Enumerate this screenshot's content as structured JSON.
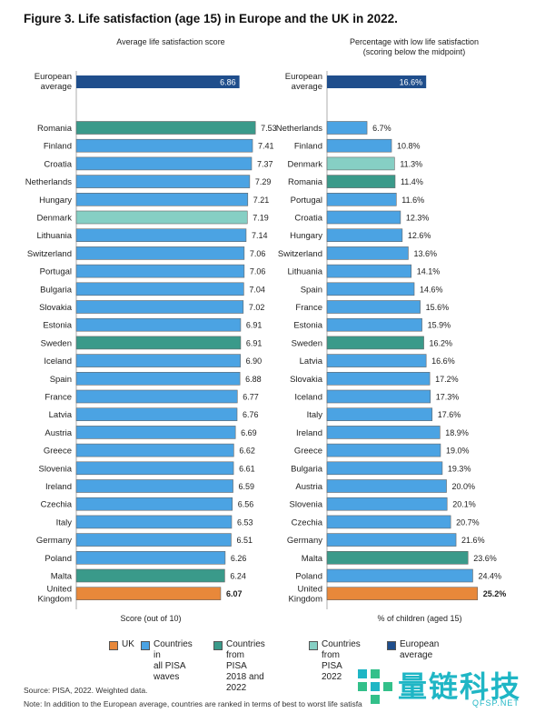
{
  "colors": {
    "uk": "#e8883a",
    "all_waves": "#4ba3e3",
    "from_2018_2022": "#3a9a8a",
    "from_2022": "#86cfc4",
    "european_average": "#1f4e8c"
  },
  "chart_data": [
    {
      "type": "bar",
      "orientation": "horizontal",
      "figure_title": "Figure 3. Life satisfaction (age 15) in Europe and the UK in 2022.",
      "title": "Average life satisfaction score",
      "xlabel": "Score (out of 10)",
      "xlim": [
        0,
        7.6
      ],
      "average": {
        "label": "European average",
        "value": 6.86,
        "display": "6.86"
      },
      "categories": [
        "Romania",
        "Finland",
        "Croatia",
        "Netherlands",
        "Hungary",
        "Denmark",
        "Lithuania",
        "Switzerland",
        "Portugal",
        "Bulgaria",
        "Slovakia",
        "Estonia",
        "Sweden",
        "Iceland",
        "Spain",
        "France",
        "Latvia",
        "Austria",
        "Greece",
        "Slovenia",
        "Ireland",
        "Czechia",
        "Italy",
        "Germany",
        "Poland",
        "Malta",
        "United Kingdom"
      ],
      "values": [
        7.53,
        7.41,
        7.37,
        7.29,
        7.21,
        7.19,
        7.14,
        7.06,
        7.06,
        7.04,
        7.02,
        6.91,
        6.91,
        6.9,
        6.88,
        6.77,
        6.76,
        6.69,
        6.62,
        6.61,
        6.59,
        6.56,
        6.53,
        6.51,
        6.26,
        6.24,
        6.07
      ],
      "labels": [
        "7.53",
        "7.41",
        "7.37",
        "7.29",
        "7.21",
        "7.19",
        "7.14",
        "7.06",
        "7.06",
        "7.04",
        "7.02",
        "6.91",
        "6.91",
        "6.90",
        "6.88",
        "6.77",
        "6.76",
        "6.69",
        "6.62",
        "6.61",
        "6.59",
        "6.56",
        "6.53",
        "6.51",
        "6.26",
        "6.24",
        "6.07"
      ],
      "groups": [
        "b",
        "a",
        "a",
        "a",
        "a",
        "c",
        "a",
        "a",
        "a",
        "a",
        "a",
        "a",
        "b",
        "a",
        "a",
        "a",
        "a",
        "a",
        "a",
        "a",
        "a",
        "a",
        "a",
        "a",
        "a",
        "b",
        "uk"
      ]
    },
    {
      "type": "bar",
      "orientation": "horizontal",
      "title": "Percentage with low life satisfaction\n(scoring below the midpoint)",
      "xlabel": "% of children (aged 15)",
      "xlim": [
        0,
        26
      ],
      "average": {
        "label": "European average",
        "value": 16.6,
        "display": "16.6%"
      },
      "categories": [
        "Netherlands",
        "Finland",
        "Denmark",
        "Romania",
        "Portugal",
        "Croatia",
        "Hungary",
        "Switzerland",
        "Lithuania",
        "Spain",
        "France",
        "Estonia",
        "Sweden",
        "Latvia",
        "Slovakia",
        "Iceland",
        "Italy",
        "Ireland",
        "Greece",
        "Bulgaria",
        "Austria",
        "Slovenia",
        "Czechia",
        "Germany",
        "Malta",
        "Poland",
        "United Kingdom"
      ],
      "values": [
        6.7,
        10.8,
        11.3,
        11.4,
        11.6,
        12.3,
        12.6,
        13.6,
        14.1,
        14.6,
        15.6,
        15.9,
        16.2,
        16.6,
        17.2,
        17.3,
        17.6,
        18.9,
        19.0,
        19.3,
        20.0,
        20.1,
        20.7,
        21.6,
        23.6,
        24.4,
        25.2
      ],
      "labels": [
        "6.7%",
        "10.8%",
        "11.3%",
        "11.4%",
        "11.6%",
        "12.3%",
        "12.6%",
        "13.6%",
        "14.1%",
        "14.6%",
        "15.6%",
        "15.9%",
        "16.2%",
        "16.6%",
        "17.2%",
        "17.3%",
        "17.6%",
        "18.9%",
        "19.0%",
        "19.3%",
        "20.0%",
        "20.1%",
        "20.7%",
        "21.6%",
        "23.6%",
        "24.4%",
        "25.2%"
      ],
      "groups": [
        "a",
        "a",
        "c",
        "b",
        "a",
        "a",
        "a",
        "a",
        "a",
        "a",
        "a",
        "a",
        "b",
        "a",
        "a",
        "a",
        "a",
        "a",
        "a",
        "a",
        "a",
        "a",
        "a",
        "a",
        "b",
        "a",
        "uk"
      ]
    }
  ],
  "legend": [
    {
      "key": "uk",
      "label": "UK"
    },
    {
      "key": "all_waves",
      "label": "Countries in\nall PISA waves"
    },
    {
      "key": "from_2018_2022",
      "label": "Countries from\nPISA 2018 and 2022"
    },
    {
      "key": "from_2022",
      "label": "Countries from\nPISA 2022"
    },
    {
      "key": "european_average",
      "label": "European average"
    }
  ],
  "notes": {
    "source": "Source: PISA, 2022. Weighted data.",
    "note": "Note: In addition to the European average, countries are ranked in terms of best to worst life satisfa"
  },
  "watermark": {
    "text": "量链科技",
    "sub": "QFSP.NET"
  }
}
